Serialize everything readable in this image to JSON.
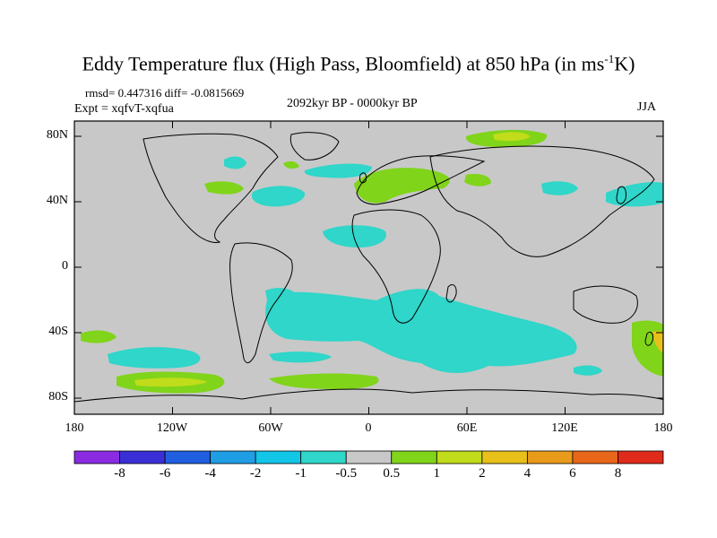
{
  "title": {
    "main": "Eddy Temperature flux (High Pass, Bloomfield) at 850 hPa (in ms",
    "sup": "-1",
    "unit": "K)"
  },
  "stats": "rmsd= 0.447316 diff= -0.0815669",
  "expt": "Expt = xqfvT-xqfua",
  "period": "2092kyr BP - 0000kyr BP",
  "season": "JJA",
  "lat_labels": [
    "80N",
    "40N",
    "0",
    "40S",
    "80S"
  ],
  "lon_labels": [
    "180",
    "120W",
    "60W",
    "0",
    "60E",
    "120E",
    "180"
  ],
  "colorbar": {
    "labels": [
      "-8",
      "-6",
      "-4",
      "-2",
      "-1",
      "-0.5",
      "0.5",
      "1",
      "2",
      "4",
      "6",
      "8"
    ],
    "colors": [
      "#8a2be2",
      "#3a2fd6",
      "#1f5fe0",
      "#1f9ee6",
      "#12c6e8",
      "#2fd6c9",
      "#c8c8c8",
      "#80d41a",
      "#c0dc1a",
      "#e8c01a",
      "#e89a1a",
      "#e8661a",
      "#e02a1a"
    ]
  },
  "map": {
    "land_color": "#c8c8c8",
    "coast_color": "#000000"
  }
}
